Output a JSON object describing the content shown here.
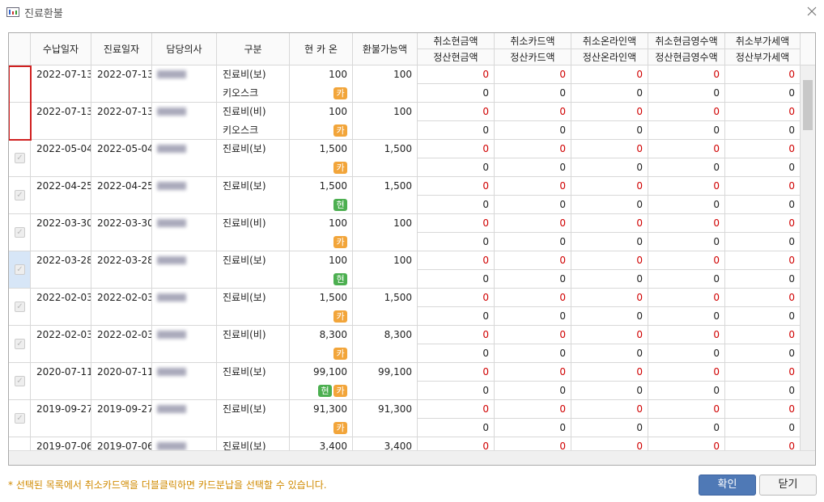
{
  "window": {
    "title": "진료환불"
  },
  "table": {
    "headers": [
      "수납일자",
      "진료일자",
      "담당의사",
      "구분",
      "현 카 온",
      "환불가능액"
    ],
    "group_headers": [
      [
        "취소현금액",
        "정산현금액"
      ],
      [
        "취소카드액",
        "정산카드액"
      ],
      [
        "취소온라인액",
        "정산온라인액"
      ],
      [
        "취소현금영수액",
        "정산현금영수액"
      ],
      [
        "취소부가세액",
        "정산부가세액"
      ]
    ],
    "rows": [
      {
        "checked": false,
        "paid_date": "2022-07-13",
        "visit_date": "2022-07-13",
        "category": [
          "진료비(보)",
          "키오스크"
        ],
        "amount": "100",
        "badges": [
          {
            "label": "카",
            "color": "#f2a53a"
          }
        ],
        "refundable": "100",
        "cancel": [
          "0",
          "0",
          "0",
          "0",
          "0"
        ],
        "settle": [
          "0",
          "0",
          "0",
          "0",
          "0"
        ]
      },
      {
        "checked": false,
        "paid_date": "2022-07-13",
        "visit_date": "2022-07-13",
        "category": [
          "진료비(비)",
          "키오스크"
        ],
        "amount": "100",
        "badges": [
          {
            "label": "카",
            "color": "#f2a53a"
          }
        ],
        "refundable": "100",
        "cancel": [
          "0",
          "0",
          "0",
          "0",
          "0"
        ],
        "settle": [
          "0",
          "0",
          "0",
          "0",
          "0"
        ]
      },
      {
        "checked": true,
        "paid_date": "2022-05-04",
        "visit_date": "2022-05-04",
        "category": [
          "진료비(보)"
        ],
        "amount": "1,500",
        "badges": [
          {
            "label": "카",
            "color": "#f2a53a"
          }
        ],
        "refundable": "1,500",
        "cancel": [
          "0",
          "0",
          "0",
          "0",
          "0"
        ],
        "settle": [
          "0",
          "0",
          "0",
          "0",
          "0"
        ]
      },
      {
        "checked": true,
        "paid_date": "2022-04-25",
        "visit_date": "2022-04-25",
        "category": [
          "진료비(보)"
        ],
        "amount": "1,500",
        "badges": [
          {
            "label": "현",
            "color": "#4caf50"
          }
        ],
        "refundable": "1,500",
        "cancel": [
          "0",
          "0",
          "0",
          "0",
          "0"
        ],
        "settle": [
          "0",
          "0",
          "0",
          "0",
          "0"
        ]
      },
      {
        "checked": true,
        "paid_date": "2022-03-30",
        "visit_date": "2022-03-30",
        "category": [
          "진료비(비)"
        ],
        "amount": "100",
        "badges": [
          {
            "label": "카",
            "color": "#f2a53a"
          }
        ],
        "refundable": "100",
        "cancel": [
          "0",
          "0",
          "0",
          "0",
          "0"
        ],
        "settle": [
          "0",
          "0",
          "0",
          "0",
          "0"
        ]
      },
      {
        "checked": true,
        "selected": true,
        "paid_date": "2022-03-28",
        "visit_date": "2022-03-28",
        "category": [
          "진료비(보)"
        ],
        "amount": "100",
        "badges": [
          {
            "label": "현",
            "color": "#4caf50"
          }
        ],
        "refundable": "100",
        "cancel": [
          "0",
          "0",
          "0",
          "0",
          "0"
        ],
        "settle": [
          "0",
          "0",
          "0",
          "0",
          "0"
        ]
      },
      {
        "checked": true,
        "paid_date": "2022-02-03",
        "visit_date": "2022-02-03",
        "category": [
          "진료비(보)"
        ],
        "amount": "1,500",
        "badges": [
          {
            "label": "카",
            "color": "#f2a53a"
          }
        ],
        "refundable": "1,500",
        "cancel": [
          "0",
          "0",
          "0",
          "0",
          "0"
        ],
        "settle": [
          "0",
          "0",
          "0",
          "0",
          "0"
        ]
      },
      {
        "checked": true,
        "paid_date": "2022-02-03",
        "visit_date": "2022-02-03",
        "category": [
          "진료비(비)"
        ],
        "amount": "8,300",
        "badges": [
          {
            "label": "카",
            "color": "#f2a53a"
          }
        ],
        "refundable": "8,300",
        "cancel": [
          "0",
          "0",
          "0",
          "0",
          "0"
        ],
        "settle": [
          "0",
          "0",
          "0",
          "0",
          "0"
        ]
      },
      {
        "checked": true,
        "paid_date": "2020-07-11",
        "visit_date": "2020-07-11",
        "category": [
          "진료비(보)"
        ],
        "amount": "99,100",
        "badges": [
          {
            "label": "현",
            "color": "#4caf50"
          },
          {
            "label": "카",
            "color": "#f2a53a"
          }
        ],
        "refundable": "99,100",
        "cancel": [
          "0",
          "0",
          "0",
          "0",
          "0"
        ],
        "settle": [
          "0",
          "0",
          "0",
          "0",
          "0"
        ]
      },
      {
        "checked": true,
        "paid_date": "2019-09-27",
        "visit_date": "2019-09-27",
        "category": [
          "진료비(보)"
        ],
        "amount": "91,300",
        "badges": [
          {
            "label": "카",
            "color": "#f2a53a"
          }
        ],
        "refundable": "91,300",
        "cancel": [
          "0",
          "0",
          "0",
          "0",
          "0"
        ],
        "settle": [
          "0",
          "0",
          "0",
          "0",
          "0"
        ]
      },
      {
        "checked": true,
        "paid_date": "2019-07-06",
        "visit_date": "2019-07-06",
        "category": [
          "진료비(보)"
        ],
        "amount": "3,400",
        "badges": [],
        "refundable": "3,400",
        "cancel": [
          "0",
          "0",
          "0",
          "0",
          "0"
        ],
        "settle": []
      }
    ]
  },
  "footer": {
    "note": "* 선택된 목록에서 취소카드액을 더블클릭하면 카드분납을 선택할 수 있습니다.",
    "buttons": [
      "확인",
      "닫기"
    ]
  }
}
